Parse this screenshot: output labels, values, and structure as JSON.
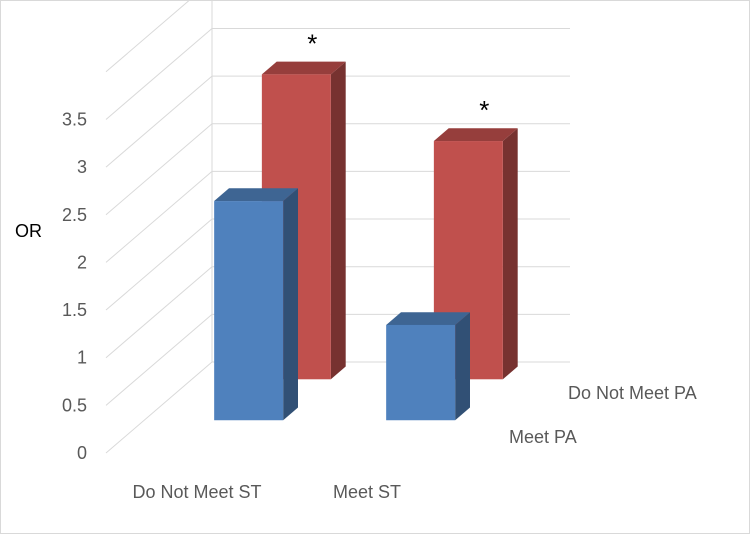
{
  "chart_data": {
    "type": "bar",
    "title": "",
    "ylabel": "OR",
    "xlabel": "",
    "ylim": [
      0,
      4
    ],
    "yticks": [
      "0",
      "0.5",
      "1",
      "1.5",
      "2",
      "2.5",
      "3",
      "3.5"
    ],
    "categories": [
      "Do Not Meet ST",
      "Meet ST"
    ],
    "series": [
      {
        "name": "Meet PA",
        "values": [
          2.3,
          1.0
        ],
        "color": "#4f81bd"
      },
      {
        "name": "Do Not Meet PA",
        "values": [
          3.2,
          2.5
        ],
        "color": "#c0504d"
      }
    ],
    "annotations": [
      {
        "series": "Do Not Meet PA",
        "category": "Do Not Meet ST",
        "text": "*"
      },
      {
        "series": "Do Not Meet PA",
        "category": "Meet ST",
        "text": "*"
      }
    ],
    "grid": true,
    "style": "3d-column"
  }
}
